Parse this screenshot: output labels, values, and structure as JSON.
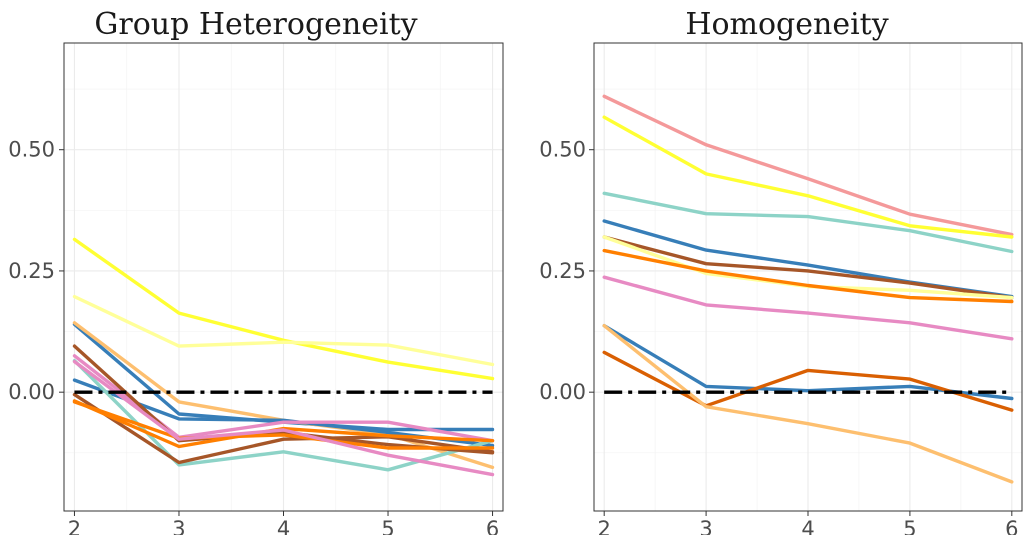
{
  "chart_data": [
    {
      "type": "line",
      "title": "Group Heterogeneity",
      "xlabel": "",
      "ylabel": "",
      "x": [
        2,
        3,
        4,
        5,
        6
      ],
      "xlim": [
        1.9,
        6.1
      ],
      "ylim": [
        -0.245,
        0.72
      ],
      "xticks": [
        2,
        3,
        4,
        5,
        6
      ],
      "yticks": [
        0.0,
        0.25,
        0.5
      ],
      "xtick_labels": [
        "2",
        "3",
        "4",
        "5",
        "6"
      ],
      "ytick_labels": [
        "0.00",
        "0.25",
        "0.50"
      ],
      "grid": true,
      "reference_line": {
        "y": 0.0,
        "style": "dot-dash",
        "color": "#000000"
      },
      "series": [
        {
          "color": "#ffff33",
          "values": [
            0.315,
            0.163,
            0.107,
            0.062,
            0.028
          ]
        },
        {
          "color": "#ffff99",
          "values": [
            0.197,
            0.095,
            0.103,
            0.097,
            0.057
          ]
        },
        {
          "color": "#377eb8",
          "values": [
            0.14,
            -0.045,
            -0.062,
            -0.077,
            -0.077
          ]
        },
        {
          "color": "#fdbf6f",
          "values": [
            0.143,
            -0.02,
            -0.058,
            -0.087,
            -0.155
          ]
        },
        {
          "color": "#377eb8",
          "values": [
            0.025,
            -0.055,
            -0.058,
            -0.083,
            -0.11
          ]
        },
        {
          "color": "#e78ac3",
          "values": [
            0.075,
            -0.093,
            -0.062,
            -0.062,
            -0.1
          ]
        },
        {
          "color": "#8dd3c7",
          "values": [
            0.065,
            -0.15,
            -0.123,
            -0.16,
            -0.1
          ]
        },
        {
          "color": "#a65628",
          "values": [
            0.095,
            -0.1,
            -0.083,
            -0.108,
            -0.125
          ]
        },
        {
          "color": "#a65628",
          "values": [
            -0.005,
            -0.145,
            -0.097,
            -0.092,
            -0.123
          ]
        },
        {
          "color": "#ff7f00",
          "values": [
            -0.02,
            -0.095,
            -0.088,
            -0.115,
            -0.115
          ]
        },
        {
          "color": "#ff7f00",
          "values": [
            -0.018,
            -0.112,
            -0.075,
            -0.09,
            -0.1
          ]
        },
        {
          "color": "#e78ac3",
          "values": [
            0.063,
            -0.097,
            -0.078,
            -0.13,
            -0.17
          ]
        }
      ]
    },
    {
      "type": "line",
      "title": "Homogeneity",
      "xlabel": "",
      "ylabel": "",
      "x": [
        2,
        3,
        4,
        5,
        6
      ],
      "xlim": [
        1.9,
        6.1
      ],
      "ylim": [
        -0.245,
        0.72
      ],
      "xticks": [
        2,
        3,
        4,
        5,
        6
      ],
      "yticks": [
        0.0,
        0.25,
        0.5
      ],
      "xtick_labels": [
        "2",
        "3",
        "4",
        "5",
        "6"
      ],
      "ytick_labels": [
        "0.00",
        "0.25",
        "0.50"
      ],
      "grid": true,
      "reference_line": {
        "y": 0.0,
        "style": "dot-dash",
        "color": "#000000"
      },
      "series": [
        {
          "color": "#f4999a",
          "values": [
            0.61,
            0.51,
            0.44,
            0.367,
            0.325
          ]
        },
        {
          "color": "#ffff33",
          "values": [
            0.567,
            0.45,
            0.405,
            0.343,
            0.32
          ]
        },
        {
          "color": "#8dd3c7",
          "values": [
            0.41,
            0.368,
            0.362,
            0.333,
            0.29
          ]
        },
        {
          "color": "#377eb8",
          "values": [
            0.353,
            0.293,
            0.262,
            0.227,
            0.197
          ]
        },
        {
          "color": "#a65628",
          "values": [
            0.32,
            0.265,
            0.25,
            0.225,
            0.195
          ]
        },
        {
          "color": "#ffff99",
          "values": [
            0.32,
            0.245,
            0.218,
            0.21,
            0.195
          ]
        },
        {
          "color": "#ff7f00",
          "values": [
            0.292,
            0.25,
            0.22,
            0.195,
            0.187
          ]
        },
        {
          "color": "#e78ac3",
          "values": [
            0.237,
            0.18,
            0.163,
            0.143,
            0.11
          ]
        },
        {
          "color": "#377eb8",
          "values": [
            0.137,
            0.012,
            0.003,
            0.012,
            -0.013
          ]
        },
        {
          "color": "#d95f02",
          "values": [
            0.082,
            -0.028,
            0.045,
            0.027,
            -0.037
          ]
        },
        {
          "color": "#fdbf6f",
          "values": [
            0.137,
            -0.03,
            -0.065,
            -0.105,
            -0.185
          ]
        }
      ]
    }
  ]
}
